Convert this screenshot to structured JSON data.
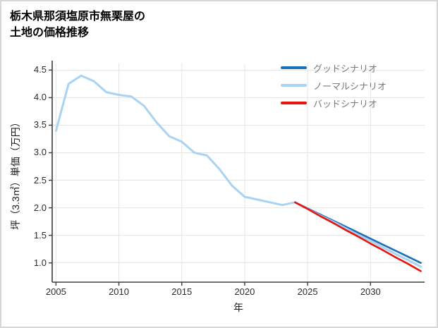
{
  "chart_data": {
    "type": "line",
    "title": "栃木県那須塩原市無栗屋の土地の価格推移",
    "title_lines": [
      "栃木県那須塩原市無栗屋の",
      "土地の価格推移"
    ],
    "xlabel": "年",
    "ylabel": "坪（3.3㎡）単価（万円）",
    "xlim": [
      2004.7,
      2034.3
    ],
    "ylim": [
      0.65,
      4.62
    ],
    "xticks": [
      2005,
      2010,
      2015,
      2020,
      2025,
      2030
    ],
    "yticks": [
      1.0,
      1.5,
      2.0,
      2.5,
      3.0,
      3.5,
      4.0,
      4.5
    ],
    "grid": true,
    "legend_position": "upper right",
    "colors": {
      "grid": "#e4e4e4",
      "axis": "#3c3c3c",
      "legend_text": "#7a7a7a",
      "good": "#1c6fbb",
      "normal": "#a9d3f2",
      "bad": "#e8140e"
    },
    "series": [
      {
        "name": "グッドシナリオ",
        "color": "#1c6fbb",
        "line_width": 2.6,
        "x": [
          2024,
          2025,
          2026,
          2027,
          2028,
          2029,
          2030,
          2031,
          2032,
          2033,
          2034
        ],
        "values": [
          2.1,
          1.99,
          1.88,
          1.77,
          1.66,
          1.55,
          1.44,
          1.33,
          1.22,
          1.11,
          1.0
        ]
      },
      {
        "name": "ノーマルシナリオ",
        "color": "#a9d3f2",
        "line_width": 3,
        "x": [
          2005,
          2006,
          2007,
          2008,
          2009,
          2010,
          2011,
          2012,
          2013,
          2014,
          2015,
          2016,
          2017,
          2018,
          2019,
          2020,
          2021,
          2022,
          2023,
          2024,
          2025,
          2026,
          2027,
          2028,
          2029,
          2030,
          2031,
          2032,
          2033,
          2034
        ],
        "values": [
          3.4,
          4.25,
          4.4,
          4.3,
          4.1,
          4.05,
          4.02,
          3.85,
          3.55,
          3.3,
          3.2,
          3.0,
          2.95,
          2.7,
          2.4,
          2.2,
          2.15,
          2.1,
          2.05,
          2.1,
          1.98,
          1.86,
          1.75,
          1.63,
          1.51,
          1.4,
          1.28,
          1.16,
          1.05,
          0.93
        ]
      },
      {
        "name": "バッドシナリオ",
        "color": "#e8140e",
        "line_width": 2.6,
        "x": [
          2024,
          2025,
          2026,
          2027,
          2028,
          2029,
          2030,
          2031,
          2032,
          2033,
          2034
        ],
        "values": [
          2.1,
          1.98,
          1.85,
          1.73,
          1.6,
          1.48,
          1.35,
          1.23,
          1.1,
          0.98,
          0.85
        ]
      }
    ]
  }
}
